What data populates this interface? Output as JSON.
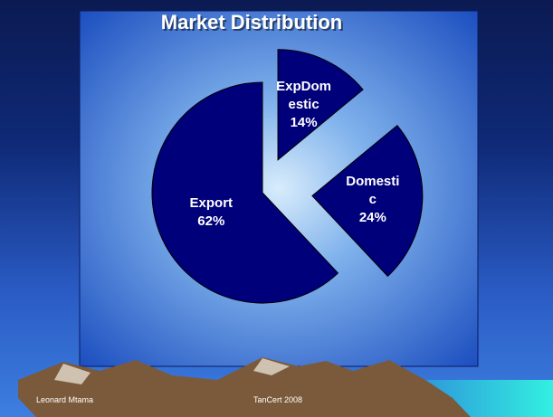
{
  "chart_data": {
    "type": "pie",
    "title": "Market Distribution",
    "categories": [
      "ExpDomestic",
      "Domestic",
      "Export"
    ],
    "values": [
      14,
      24,
      62
    ],
    "value_labels": [
      "14%",
      "24%",
      "62%"
    ],
    "color": "#00007a"
  },
  "footer": {
    "author": "Leonard Mtama",
    "event": "TanCert 2008"
  }
}
